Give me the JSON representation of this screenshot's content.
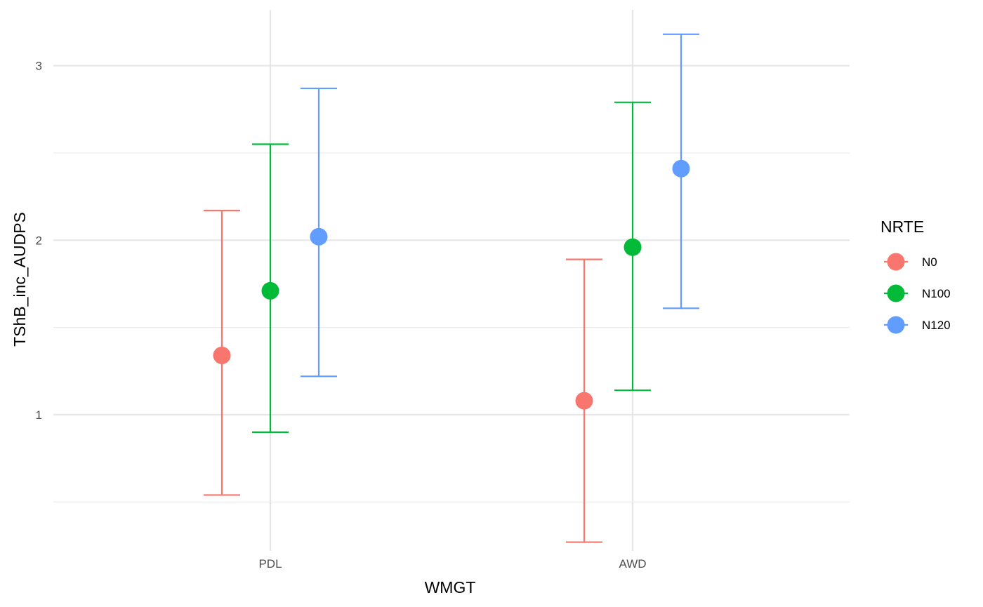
{
  "chart_data": {
    "type": "scatter",
    "subtype": "point-with-errorbars",
    "xlabel": "WMGT",
    "ylabel": "TShB_inc_AUDPS",
    "categories": [
      "PDL",
      "AWD"
    ],
    "ylim": [
      0.22,
      3.32
    ],
    "y_ticks": [
      1,
      2,
      3
    ],
    "y_tick_labels": [
      "1",
      "2",
      "3"
    ],
    "grid": true,
    "legend": {
      "title": "NRTE",
      "position": "right"
    },
    "series": [
      {
        "name": "N0",
        "color": "#F8766D",
        "points": [
          {
            "x": "PDL",
            "y": 1.34,
            "ymin": 0.54,
            "ymax": 2.17
          },
          {
            "x": "AWD",
            "y": 1.08,
            "ymin": 0.27,
            "ymax": 1.89
          }
        ]
      },
      {
        "name": "N100",
        "color": "#00BA38",
        "points": [
          {
            "x": "PDL",
            "y": 1.71,
            "ymin": 0.9,
            "ymax": 2.55
          },
          {
            "x": "AWD",
            "y": 1.96,
            "ymin": 1.14,
            "ymax": 2.79
          }
        ]
      },
      {
        "name": "N120",
        "color": "#619CFF",
        "points": [
          {
            "x": "PDL",
            "y": 2.02,
            "ymin": 1.22,
            "ymax": 2.87
          },
          {
            "x": "AWD",
            "y": 2.41,
            "ymin": 1.61,
            "ymax": 3.18
          }
        ]
      }
    ]
  }
}
